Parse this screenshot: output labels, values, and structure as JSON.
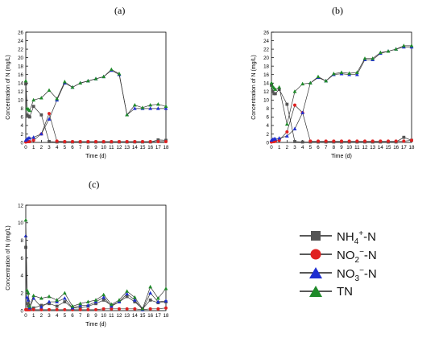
{
  "panels": [
    {
      "label": "(a)",
      "ylabel": "Concentration of N (mg/L)",
      "xlabel": "Time (d)"
    },
    {
      "label": "(b)",
      "ylabel": "Concentration of N (mg/L)",
      "xlabel": "Time (d)"
    },
    {
      "label": "(c)",
      "ylabel": "Concentration of N (mg/L)",
      "xlabel": "Time (d)"
    }
  ],
  "legend": [
    {
      "key": "nh4",
      "text_main": "NH",
      "text_sub": "4",
      "text_sup": "+",
      "text_tail": "-N",
      "color": "#555555",
      "marker": "square"
    },
    {
      "key": "no2",
      "text_main": "NO",
      "text_sub": "2",
      "text_sup": "−",
      "text_tail": "-N",
      "color": "#e02020",
      "marker": "circle"
    },
    {
      "key": "no3",
      "text_main": "NO",
      "text_sub": "3",
      "text_sup": "−",
      "text_tail": "-N",
      "color": "#1f2fd0",
      "marker": "triangle"
    },
    {
      "key": "tn",
      "text_main": "TN",
      "text_sub": "",
      "text_sup": "",
      "text_tail": "",
      "color": "#1f8a2a",
      "marker": "triangle"
    }
  ],
  "chart_data": [
    {
      "type": "line",
      "title": "(a)",
      "xlabel": "Time (d)",
      "ylabel": "Concentration of N (mg/L)",
      "xlim": [
        0,
        18
      ],
      "ylim": [
        0,
        26
      ],
      "xticks": [
        0,
        1,
        2,
        3,
        4,
        5,
        6,
        7,
        8,
        9,
        10,
        11,
        12,
        13,
        14,
        15,
        16,
        17,
        18
      ],
      "yticks": [
        0,
        2,
        4,
        6,
        8,
        10,
        12,
        14,
        16,
        18,
        20,
        22,
        24,
        26
      ],
      "series": [
        {
          "key": "nh4",
          "x": [
            0,
            0.17,
            0.33,
            0.5,
            1,
            2,
            3,
            4,
            5,
            6,
            7,
            8,
            9,
            10,
            11,
            12,
            13,
            14,
            15,
            16,
            17,
            18
          ],
          "y": [
            13.8,
            6.5,
            6.2,
            6.0,
            8.5,
            6.5,
            0.2,
            0.1,
            0.1,
            0.1,
            0.1,
            0.1,
            0.1,
            0.1,
            0.1,
            0.1,
            0.1,
            0.1,
            0.1,
            0.1,
            0.6,
            0.5
          ]
        },
        {
          "key": "no2",
          "x": [
            0,
            0.17,
            0.33,
            0.5,
            1,
            2,
            3,
            4,
            5,
            6,
            7,
            8,
            9,
            10,
            11,
            12,
            13,
            14,
            15,
            16,
            17,
            18
          ],
          "y": [
            0.1,
            0.2,
            0.2,
            0.2,
            0.5,
            2.0,
            6.8,
            0.3,
            0.2,
            0.2,
            0.2,
            0.2,
            0.2,
            0.2,
            0.2,
            0.2,
            0.2,
            0.2,
            0.2,
            0.2,
            0.2,
            0.2
          ]
        },
        {
          "key": "no3",
          "x": [
            0,
            0.17,
            0.33,
            0.5,
            1,
            2,
            3,
            4,
            5,
            6,
            7,
            8,
            9,
            10,
            11,
            12,
            13,
            14,
            15,
            16,
            17,
            18
          ],
          "y": [
            0.5,
            0.8,
            1.0,
            1.0,
            1.2,
            2.0,
            5.5,
            10.0,
            14.0,
            13.0,
            14.0,
            14.5,
            15.0,
            15.5,
            17.0,
            16.0,
            6.5,
            8.0,
            8.0,
            8.0,
            8.0,
            8.0
          ]
        },
        {
          "key": "tn",
          "x": [
            0,
            0.17,
            0.33,
            0.5,
            1,
            2,
            3,
            4,
            5,
            6,
            7,
            8,
            9,
            10,
            11,
            12,
            13,
            14,
            15,
            16,
            17,
            18
          ],
          "y": [
            14.5,
            8.0,
            7.8,
            7.5,
            10.0,
            10.5,
            12.3,
            10.3,
            14.3,
            13.0,
            14.0,
            14.5,
            15.0,
            15.5,
            17.2,
            16.2,
            6.5,
            8.8,
            8.2,
            8.8,
            9.0,
            8.5
          ]
        }
      ]
    },
    {
      "type": "line",
      "title": "(b)",
      "xlabel": "Time (d)",
      "ylabel": "Concentration of N (mg/L)",
      "xlim": [
        0,
        18
      ],
      "ylim": [
        0,
        26
      ],
      "xticks": [
        0,
        1,
        2,
        3,
        4,
        5,
        6,
        7,
        8,
        9,
        10,
        11,
        12,
        13,
        14,
        15,
        16,
        17,
        18
      ],
      "yticks": [
        0,
        2,
        4,
        6,
        8,
        10,
        12,
        14,
        16,
        18,
        20,
        22,
        24,
        26
      ],
      "series": [
        {
          "key": "nh4",
          "x": [
            0,
            0.17,
            0.33,
            0.5,
            1,
            2,
            3,
            4,
            5,
            6,
            7,
            8,
            9,
            10,
            11,
            12,
            13,
            14,
            15,
            16,
            17,
            18
          ],
          "y": [
            13.5,
            12.0,
            11.5,
            11.5,
            12.5,
            9.0,
            0.2,
            0.1,
            0.1,
            0.1,
            0.1,
            0.1,
            0.1,
            0.1,
            0.1,
            0.1,
            0.1,
            0.1,
            0.1,
            0.1,
            1.2,
            0.5
          ]
        },
        {
          "key": "no2",
          "x": [
            0,
            0.17,
            0.33,
            0.5,
            1,
            2,
            3,
            4,
            5,
            6,
            7,
            8,
            9,
            10,
            11,
            12,
            13,
            14,
            15,
            16,
            17,
            18
          ],
          "y": [
            0.1,
            0.2,
            0.2,
            0.3,
            0.5,
            2.5,
            8.8,
            7.0,
            0.3,
            0.3,
            0.3,
            0.3,
            0.3,
            0.3,
            0.3,
            0.3,
            0.3,
            0.3,
            0.3,
            0.3,
            0.3,
            0.5
          ]
        },
        {
          "key": "no3",
          "x": [
            0,
            0.17,
            0.33,
            0.5,
            1,
            2,
            3,
            4,
            5,
            6,
            7,
            8,
            9,
            10,
            11,
            12,
            13,
            14,
            15,
            16,
            17,
            18
          ],
          "y": [
            0.5,
            0.7,
            0.8,
            0.8,
            1.0,
            1.5,
            3.2,
            7.0,
            14.0,
            15.3,
            14.5,
            16.0,
            16.2,
            16.0,
            16.0,
            19.5,
            19.5,
            21.0,
            21.5,
            22.0,
            22.5,
            22.5
          ]
        },
        {
          "key": "tn",
          "x": [
            0,
            0.17,
            0.33,
            0.5,
            1,
            2,
            3,
            4,
            5,
            6,
            7,
            8,
            9,
            10,
            11,
            12,
            13,
            14,
            15,
            16,
            17,
            18
          ],
          "y": [
            14.0,
            13.2,
            12.8,
            12.5,
            13.0,
            4.3,
            12.0,
            13.8,
            14.0,
            15.5,
            14.5,
            16.2,
            16.5,
            16.3,
            16.5,
            19.8,
            19.8,
            21.2,
            21.5,
            22.0,
            22.8,
            22.8
          ]
        }
      ]
    },
    {
      "type": "line",
      "title": "(c)",
      "xlabel": "Time (d)",
      "ylabel": "Concentration of N (mg/L)",
      "xlim": [
        0,
        18
      ],
      "ylim": [
        0,
        12
      ],
      "xticks": [
        0,
        1,
        2,
        3,
        4,
        5,
        6,
        7,
        8,
        9,
        10,
        11,
        12,
        13,
        14,
        15,
        16,
        17,
        18
      ],
      "yticks": [
        0,
        2,
        4,
        6,
        8,
        10,
        12
      ],
      "series": [
        {
          "key": "nh4",
          "x": [
            0,
            0.17,
            0.33,
            0.5,
            1,
            2,
            3,
            4,
            5,
            6,
            7,
            8,
            9,
            10,
            11,
            12,
            13,
            14,
            15,
            16,
            17,
            18
          ],
          "y": [
            7.2,
            0.8,
            0.5,
            0.2,
            0.3,
            0.6,
            0.8,
            0.5,
            1.0,
            0.3,
            0.3,
            0.5,
            0.8,
            1.2,
            0.6,
            1.0,
            1.6,
            1.0,
            0.2,
            1.2,
            0.9,
            1.0
          ]
        },
        {
          "key": "no2",
          "x": [
            0,
            0.17,
            0.33,
            0.5,
            1,
            2,
            3,
            4,
            5,
            6,
            7,
            8,
            9,
            10,
            11,
            12,
            13,
            14,
            15,
            16,
            17,
            18
          ],
          "y": [
            0.1,
            0.1,
            0.1,
            0.1,
            0.1,
            0.1,
            0.1,
            0.1,
            0.1,
            0.1,
            0.1,
            0.1,
            0.1,
            0.2,
            0.2,
            0.2,
            0.2,
            0.2,
            0.1,
            0.2,
            0.2,
            0.3
          ]
        },
        {
          "key": "no3",
          "x": [
            0,
            0.17,
            0.33,
            0.5,
            1,
            2,
            3,
            4,
            5,
            6,
            7,
            8,
            9,
            10,
            11,
            12,
            13,
            14,
            15,
            16,
            17,
            18
          ],
          "y": [
            8.5,
            1.5,
            1.2,
            0.3,
            1.4,
            0.4,
            1.0,
            1.0,
            1.4,
            0.3,
            0.6,
            0.6,
            1.0,
            1.5,
            0.5,
            1.0,
            1.9,
            1.2,
            0.1,
            2.0,
            1.0,
            1.1
          ]
        },
        {
          "key": "tn",
          "x": [
            0,
            0.17,
            0.33,
            0.5,
            1,
            2,
            3,
            4,
            5,
            6,
            7,
            8,
            9,
            10,
            11,
            12,
            13,
            14,
            15,
            16,
            17,
            18
          ],
          "y": [
            10.3,
            2.3,
            2.0,
            0.5,
            1.7,
            1.4,
            1.6,
            1.2,
            2.0,
            0.5,
            0.8,
            1.0,
            1.2,
            1.8,
            0.7,
            1.2,
            2.2,
            1.5,
            0.2,
            2.7,
            1.4,
            2.5
          ]
        }
      ]
    }
  ]
}
